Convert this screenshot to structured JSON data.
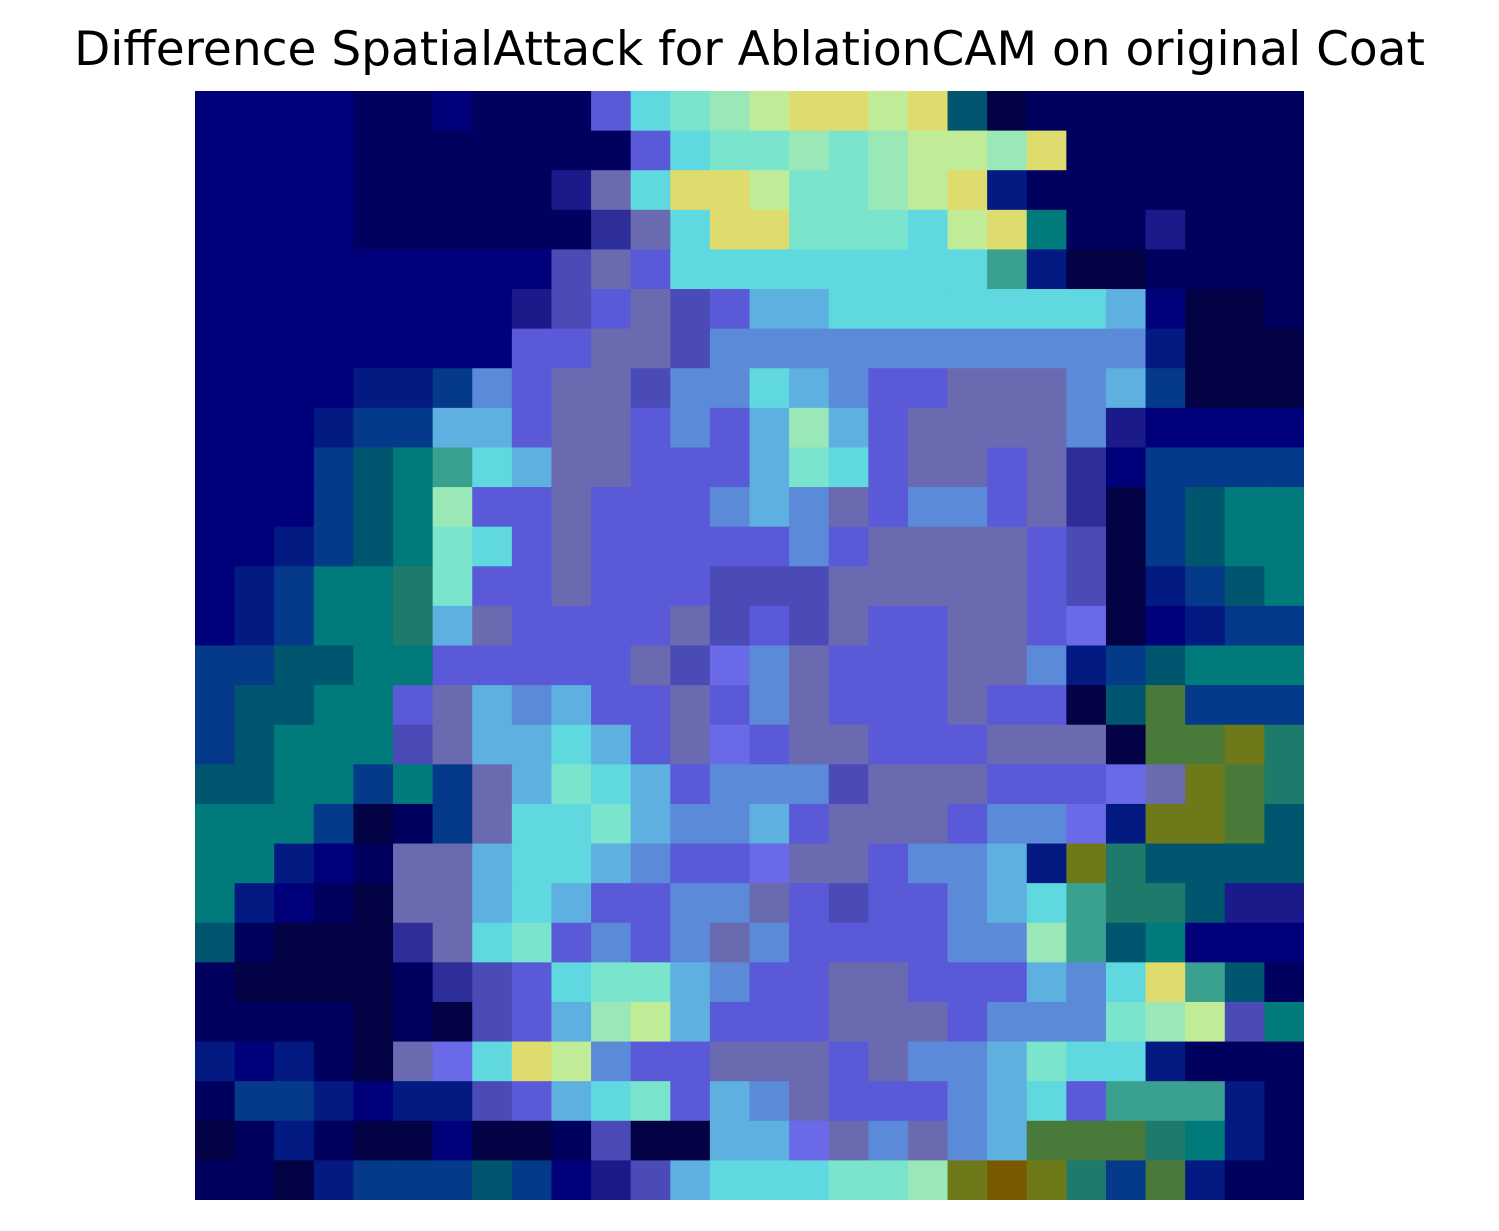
{
  "figure": {
    "title": "Difference SpatialAttack for AblationCAM on original Coat"
  },
  "image": {
    "description_icon": "heatmap-overlay-image",
    "grid_rows": 28,
    "grid_cols": 28,
    "palette": {
      "0": "#020245",
      "1": "#00005e",
      "2": "#00007a",
      "3": "#021a82",
      "4": "#053a8a",
      "5": "#00566f",
      "6": "#007a7a",
      "7": "#1e7a6a",
      "8": "#4a7a3a",
      "9": "#6e7a1a",
      "a": "#1a1a8a",
      "b": "#2e2e9a",
      "c": "#4b4bb8",
      "d": "#5a5ad8",
      "e": "#6a6ae8",
      "f": "#5a8ad8",
      "g": "#5eb0e0",
      "h": "#60d8e0",
      "i": "#7ae4cc",
      "j": "#9ae8b8",
      "k": "#c0ec98",
      "l": "#dedc6c",
      "m": "#c8a050",
      "n": "#7a5a00",
      "o": "#3aa090",
      "p": "#6a6ab0"
    },
    "rows": [
      "2222112111dhijkllkl50111111",
      "22221111111dhiijijkkjl1111111",
      "222211111aphllkiijkl3111111",
      "2222111111bphlliiihkl611a111",
      "222222222cpdhhhhhhhho3001111",
      "22222222acdpcdgghhhhhhhg2001",
      "22222222ddppcfffffffffff3000",
      "2222334fdppcffhgfddpppfg4000",
      "222344ggdppdfdgjgdppppfa222",
      "222456ohgppdddgihdppdpb244",
      "222456jddpdddfgfpdffdpb04566",
      "223456ihdpdddddfdppppdc0456",
      "234667iddpdddcccpppppdc03456",
      "234667gpddddpcdcpddppde02344",
      "445566dddddpcefpdddppf3456",
      "45566dpgfgddpdfpdddpdd0584",
      "45666cpgghgdpedppdddppp08897",
      "5566464pgihgdfffcpppdddep987",
      "6664014phhigffgdpppdffe39985",
      "66321ppghhgfddeppdffg3975",
      "63210ppghgddffpdcddfgho775a",
      "51000bphidfdfpfddddffjo562",
      "100001bcdhiigfddppdddgfhlo51",
      "1111010cdgjkgdddpppdfffijkc6311",
      "32310pehlkfddpppdpffgihh3111",
      "1443233cdghidgfpdddfghdooo311",
      "0131002001c00ggepfpfg88876311",
      "1103444542acghhhiij9n9748311"
    ]
  }
}
